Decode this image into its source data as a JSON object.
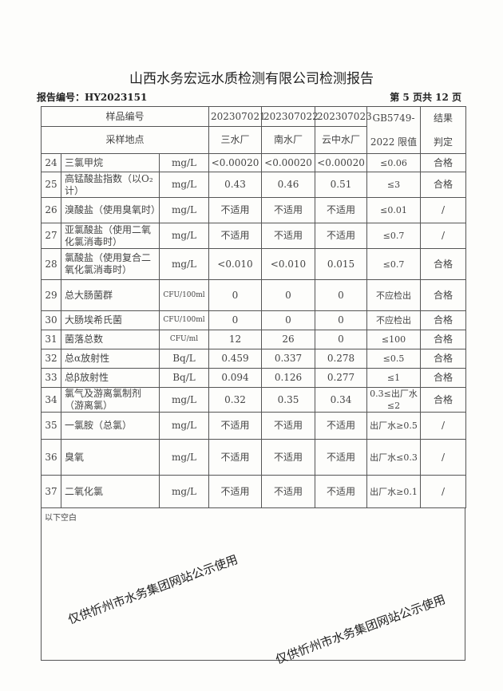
{
  "title": "山西水务宏远水质检测有限公司检测报告",
  "report_no": "报告编号：HY2023151",
  "page_info": "第 5 页共 12 页",
  "header": {
    "sample_no_label": "样品编号",
    "site_label": "采样地点",
    "samples": [
      "202307021",
      "202307022",
      "202307023"
    ],
    "sites": [
      "三水厂",
      "南水厂",
      "云中水厂"
    ],
    "limit_label_1": "GB5749-",
    "limit_label_2": "2022 限值",
    "result_label_1": "结果",
    "result_label_2": "判定"
  },
  "rows": [
    {
      "no": "24",
      "item": "三氯甲烷",
      "unit": "mg/L",
      "v": [
        "<0.00020",
        "<0.00020",
        "<0.00020"
      ],
      "limit": "≤0.06",
      "result": "合格"
    },
    {
      "no": "25",
      "item": "高锰酸盐指数（以O₂计）",
      "unit": "mg/L",
      "v": [
        "0.43",
        "0.46",
        "0.51"
      ],
      "limit": "≤3",
      "result": "合格"
    },
    {
      "no": "26",
      "item": "溴酸盐（使用臭氧时）",
      "unit": "mg/L",
      "v": [
        "不适用",
        "不适用",
        "不适用"
      ],
      "limit": "≤0.01",
      "result": "/"
    },
    {
      "no": "27",
      "item": "亚氯酸盐（使用二氧化氯消毒时）",
      "unit": "mg/L",
      "v": [
        "不适用",
        "不适用",
        "不适用"
      ],
      "limit": "≤0.7",
      "result": "/"
    },
    {
      "no": "28",
      "item": "氯酸盐（使用复合二氧化氯消毒时）",
      "unit": "mg/L",
      "v": [
        "<0.010",
        "<0.010",
        "0.015"
      ],
      "limit": "≤0.7",
      "result": "合格"
    },
    {
      "no": "29",
      "item": "总大肠菌群",
      "unit": "CFU/100ml",
      "v": [
        "0",
        "0",
        "0"
      ],
      "limit": "不应检出",
      "result": "合格"
    },
    {
      "no": "30",
      "item": "大肠埃希氏菌",
      "unit": "CFU/100ml",
      "v": [
        "0",
        "0",
        "0"
      ],
      "limit": "不应检出",
      "result": "合格"
    },
    {
      "no": "31",
      "item": "菌落总数",
      "unit": "CFU/ml",
      "v": [
        "12",
        "26",
        "0"
      ],
      "limit": "≤100",
      "result": "合格"
    },
    {
      "no": "32",
      "item": "总α放射性",
      "unit": "Bq/L",
      "v": [
        "0.459",
        "0.337",
        "0.278"
      ],
      "limit": "≤0.5",
      "result": "合格"
    },
    {
      "no": "33",
      "item": "总β放射性",
      "unit": "Bq/L",
      "v": [
        "0.094",
        "0.126",
        "0.277"
      ],
      "limit": "≤1",
      "result": "合格"
    },
    {
      "no": "34",
      "item": "氯气及游离氯制剂（游离氯）",
      "unit": "mg/L",
      "v": [
        "0.32",
        "0.35",
        "0.34"
      ],
      "limit": "0.3≤出厂水≤2",
      "result": "合格"
    },
    {
      "no": "35",
      "item": "一氯胺（总氯）",
      "unit": "mg/L",
      "v": [
        "不适用",
        "不适用",
        "不适用"
      ],
      "limit": "出厂水≥0.5",
      "result": "/"
    },
    {
      "no": "36",
      "item": "臭氧",
      "unit": "mg/L",
      "v": [
        "不适用",
        "不适用",
        "不适用"
      ],
      "limit": "出厂水≤0.3",
      "result": "/"
    },
    {
      "no": "37",
      "item": "二氧化氯",
      "unit": "mg/L",
      "v": [
        "不适用",
        "不适用",
        "不适用"
      ],
      "limit": "出厂水≥0.1",
      "result": "/"
    }
  ],
  "blank_note": "以下空白",
  "watermark": "仅供忻州市水务集团网站公示使用"
}
